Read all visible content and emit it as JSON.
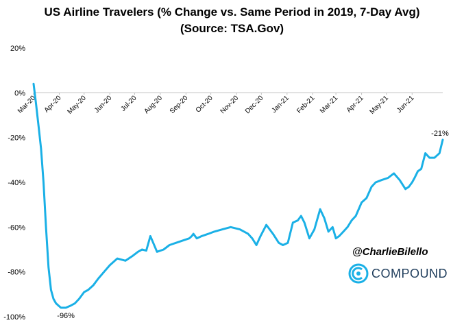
{
  "title": {
    "line1": "US Airline Travelers (% Change vs. Same Period in 2019, 7-Day Avg)",
    "line2": "(Source: TSA.Gov)"
  },
  "watermark": {
    "handle": "@CharlieBilello",
    "brand": "COMPOUND"
  },
  "colors": {
    "line": "#1ab0e6",
    "axis": "#bfbfbf",
    "brand_icon": "#1ab0e6",
    "brand_text": "#1f3d5c"
  },
  "chart_data": {
    "type": "line",
    "title": "US Airline Travelers (% Change vs. Same Period in 2019, 7-Day Avg)",
    "subtitle": "(Source: TSA.Gov)",
    "ylim": [
      -100,
      20
    ],
    "y_ticks": [
      20,
      0,
      -20,
      -40,
      -60,
      -80,
      -100
    ],
    "y_tick_labels": [
      "20%",
      "0%",
      "-20%",
      "-40%",
      "-60%",
      "-80%",
      "-100%"
    ],
    "x_tick_labels": [
      "Mar-20",
      "Apr-20",
      "May-20",
      "Jun-20",
      "Jul-20",
      "Aug-20",
      "Sep-20",
      "Oct-20",
      "Nov-20",
      "Dec-20",
      "Jan-21",
      "Feb-21",
      "Mar-21",
      "Apr-21",
      "May-21",
      "Jun-21"
    ],
    "grid": false,
    "series": [
      {
        "x": [
          "2020-03-01",
          "2020-03-04",
          "2020-03-07",
          "2020-03-10",
          "2020-03-13",
          "2020-03-16",
          "2020-03-19",
          "2020-03-22",
          "2020-03-25",
          "2020-03-28",
          "2020-03-31",
          "2020-04-03",
          "2020-04-06",
          "2020-04-09",
          "2020-04-12",
          "2020-04-15",
          "2020-04-20",
          "2020-04-25",
          "2020-05-01",
          "2020-05-06",
          "2020-05-12",
          "2020-05-18",
          "2020-05-25",
          "2020-06-01",
          "2020-06-10",
          "2020-06-20",
          "2020-06-28",
          "2020-07-05",
          "2020-07-10",
          "2020-07-15",
          "2020-07-20",
          "2020-07-28",
          "2020-08-05",
          "2020-08-12",
          "2020-08-20",
          "2020-08-28",
          "2020-09-05",
          "2020-09-08",
          "2020-09-10",
          "2020-09-14",
          "2020-09-20",
          "2020-09-28",
          "2020-10-05",
          "2020-10-15",
          "2020-10-25",
          "2020-11-05",
          "2020-11-15",
          "2020-11-20",
          "2020-11-25",
          "2020-11-30",
          "2020-12-07",
          "2020-12-15",
          "2020-12-22",
          "2020-12-27",
          "2021-01-02",
          "2021-01-08",
          "2021-01-14",
          "2021-01-18",
          "2021-01-22",
          "2021-01-28",
          "2021-02-03",
          "2021-02-10",
          "2021-02-15",
          "2021-02-20",
          "2021-02-25",
          "2021-03-01",
          "2021-03-05",
          "2021-03-10",
          "2021-03-15",
          "2021-03-20",
          "2021-03-25",
          "2021-04-01",
          "2021-04-07",
          "2021-04-13",
          "2021-04-18",
          "2021-04-25",
          "2021-05-03",
          "2021-05-10",
          "2021-05-17",
          "2021-05-24",
          "2021-05-28",
          "2021-06-01",
          "2021-06-04",
          "2021-06-08",
          "2021-06-12",
          "2021-06-17",
          "2021-06-22",
          "2021-06-28",
          "2021-07-04",
          "2021-07-08"
        ],
        "y": [
          4,
          -5,
          -15,
          -25,
          -40,
          -60,
          -78,
          -88,
          -92,
          -94,
          -95,
          -96,
          -96,
          -96,
          -95.5,
          -95,
          -94,
          -92,
          -89,
          -88,
          -86,
          -83,
          -80,
          -77,
          -74,
          -75,
          -73,
          -71,
          -70,
          -70.5,
          -64,
          -71,
          -70,
          -68,
          -67,
          -66,
          -65,
          -64,
          -63,
          -65,
          -64,
          -63,
          -62,
          -61,
          -60,
          -61,
          -63,
          -65,
          -68,
          -64,
          -59,
          -63,
          -67,
          -68,
          -67,
          -58,
          -57,
          -55,
          -58,
          -65,
          -61,
          -52,
          -56,
          -62,
          -60,
          -65,
          -64,
          -62,
          -60,
          -57,
          -55,
          -49,
          -47,
          -42,
          -40,
          -39,
          -38,
          -36,
          -39,
          -43,
          -42,
          -40,
          -38,
          -35,
          -34,
          -27,
          -29,
          -29,
          -27,
          -21
        ]
      }
    ],
    "annotations": [
      {
        "x": "2020-04-09",
        "y": -96,
        "text": "-96%"
      },
      {
        "x": "2021-07-08",
        "y": -21,
        "text": "-21%"
      }
    ]
  }
}
